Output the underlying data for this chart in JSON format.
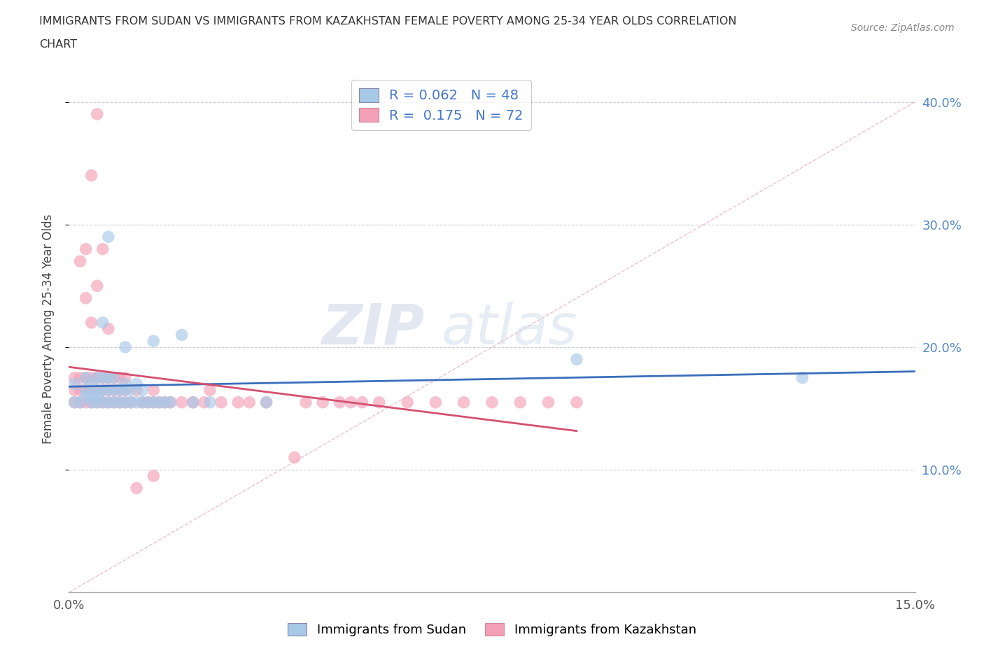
{
  "title_line1": "IMMIGRANTS FROM SUDAN VS IMMIGRANTS FROM KAZAKHSTAN FEMALE POVERTY AMONG 25-34 YEAR OLDS CORRELATION",
  "title_line2": "CHART",
  "source": "Source: ZipAtlas.com",
  "ylabel": "Female Poverty Among 25-34 Year Olds",
  "xlim": [
    0.0,
    0.15
  ],
  "ylim": [
    0.0,
    0.43
  ],
  "ytick_positions": [
    0.1,
    0.2,
    0.3,
    0.4
  ],
  "ytick_labels": [
    "10.0%",
    "20.0%",
    "30.0%",
    "40.0%"
  ],
  "color_blue": "#A8C8E8",
  "color_pink": "#F4A0B8",
  "color_trendline_blue": "#3A6EBC",
  "color_trendline_pink": "#D45070",
  "color_refline": "#E8A0B0",
  "watermark_zip": "ZIP",
  "watermark_atlas": "atlas",
  "sudan_x": [
    0.001,
    0.001,
    0.002,
    0.003,
    0.003,
    0.003,
    0.004,
    0.004,
    0.004,
    0.005,
    0.005,
    0.005,
    0.005,
    0.006,
    0.006,
    0.006,
    0.006,
    0.007,
    0.007,
    0.007,
    0.007,
    0.008,
    0.008,
    0.008,
    0.009,
    0.009,
    0.01,
    0.01,
    0.01,
    0.01,
    0.011,
    0.011,
    0.012,
    0.012,
    0.013,
    0.013,
    0.014,
    0.015,
    0.015,
    0.016,
    0.017,
    0.018,
    0.02,
    0.022,
    0.025,
    0.035,
    0.09,
    0.13
  ],
  "sudan_y": [
    0.17,
    0.155,
    0.155,
    0.165,
    0.175,
    0.16,
    0.17,
    0.155,
    0.16,
    0.175,
    0.155,
    0.165,
    0.16,
    0.22,
    0.155,
    0.165,
    0.175,
    0.155,
    0.165,
    0.175,
    0.29,
    0.155,
    0.165,
    0.175,
    0.155,
    0.165,
    0.17,
    0.155,
    0.165,
    0.2,
    0.155,
    0.165,
    0.155,
    0.17,
    0.155,
    0.165,
    0.155,
    0.155,
    0.205,
    0.155,
    0.155,
    0.155,
    0.21,
    0.155,
    0.155,
    0.155,
    0.19,
    0.175
  ],
  "kazakhstan_x": [
    0.001,
    0.001,
    0.001,
    0.002,
    0.002,
    0.002,
    0.002,
    0.003,
    0.003,
    0.003,
    0.003,
    0.003,
    0.004,
    0.004,
    0.004,
    0.004,
    0.004,
    0.005,
    0.005,
    0.005,
    0.005,
    0.005,
    0.006,
    0.006,
    0.006,
    0.006,
    0.007,
    0.007,
    0.007,
    0.007,
    0.008,
    0.008,
    0.008,
    0.009,
    0.009,
    0.009,
    0.01,
    0.01,
    0.01,
    0.011,
    0.012,
    0.012,
    0.013,
    0.014,
    0.015,
    0.015,
    0.015,
    0.016,
    0.017,
    0.018,
    0.02,
    0.022,
    0.024,
    0.025,
    0.027,
    0.03,
    0.032,
    0.035,
    0.04,
    0.042,
    0.045,
    0.048,
    0.05,
    0.052,
    0.055,
    0.06,
    0.065,
    0.07,
    0.075,
    0.08,
    0.085,
    0.09
  ],
  "kazakhstan_y": [
    0.155,
    0.165,
    0.175,
    0.155,
    0.165,
    0.175,
    0.27,
    0.155,
    0.165,
    0.175,
    0.24,
    0.28,
    0.155,
    0.165,
    0.175,
    0.22,
    0.34,
    0.155,
    0.165,
    0.175,
    0.25,
    0.39,
    0.155,
    0.165,
    0.175,
    0.28,
    0.155,
    0.165,
    0.175,
    0.215,
    0.155,
    0.165,
    0.175,
    0.155,
    0.165,
    0.175,
    0.155,
    0.165,
    0.175,
    0.155,
    0.165,
    0.085,
    0.155,
    0.155,
    0.155,
    0.165,
    0.095,
    0.155,
    0.155,
    0.155,
    0.155,
    0.155,
    0.155,
    0.165,
    0.155,
    0.155,
    0.155,
    0.155,
    0.11,
    0.155,
    0.155,
    0.155,
    0.155,
    0.155,
    0.155,
    0.155,
    0.155,
    0.155,
    0.155,
    0.155,
    0.155,
    0.155
  ]
}
